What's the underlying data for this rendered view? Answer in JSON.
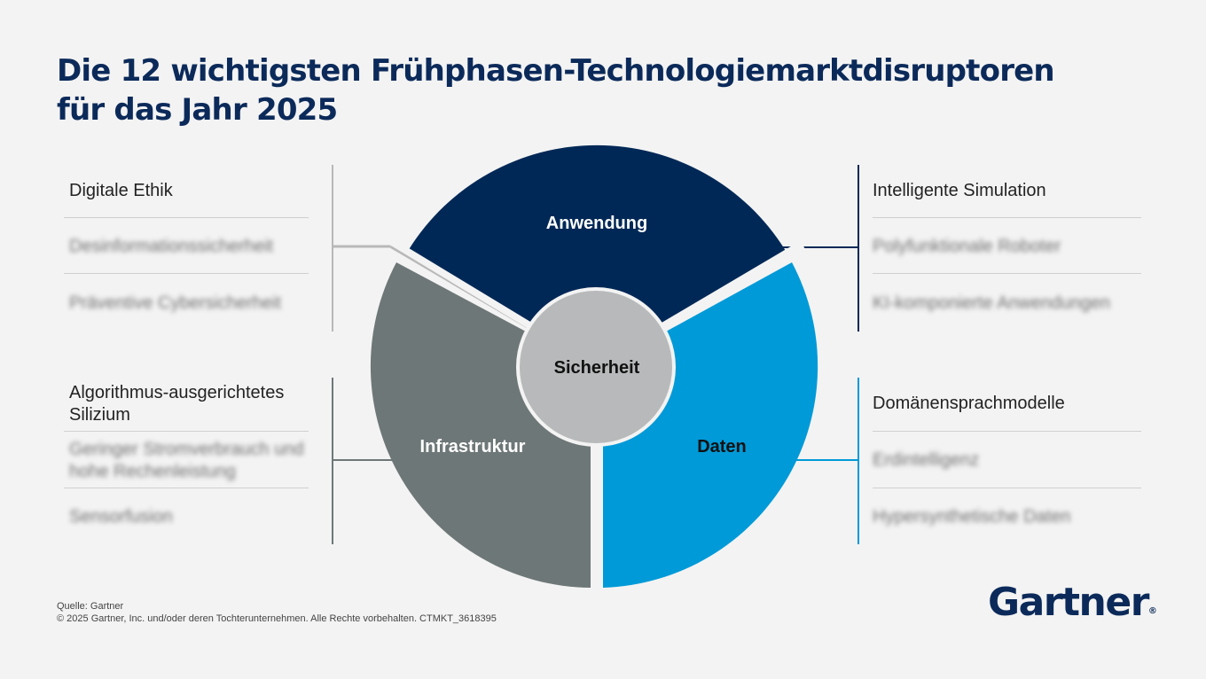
{
  "title": {
    "line1": "Die 12 wichtigsten Frühphasen-Technologiemarktdisruptoren",
    "line2": "für das Jahr 2025"
  },
  "diagram": {
    "center": "Sicherheit",
    "segments": {
      "top": "Anwendung",
      "left": "Infrastruktur",
      "right": "Daten"
    },
    "colors": {
      "anwendung": "#002856",
      "infrastruktur": "#6e7777",
      "daten": "#009ad8",
      "sicherheit": "#b7b9ba"
    }
  },
  "groups": {
    "top_left": {
      "items": [
        "Digitale Ethik",
        "Desinformationssicherheit",
        "Präventive Cybersicherheit"
      ]
    },
    "bottom_left": {
      "items": [
        "Algorithmus-ausgerichtetes Silizium",
        "Geringer Stromverbrauch und hohe Rechenleistung",
        "Sensorfusion"
      ]
    },
    "top_right": {
      "items": [
        "Intelligente Simulation",
        "Polyfunktionale Roboter",
        "KI-komponierte Anwendungen"
      ]
    },
    "bottom_right": {
      "items": [
        "Domänensprachmodelle",
        "Erdintelligenz",
        "Hypersynthetische Daten"
      ]
    }
  },
  "footer": {
    "source": "Quelle: Gartner",
    "copyright": "© 2025 Gartner, Inc. und/oder deren Tochterunternehmen. Alle Rechte vorbehalten. CTMKT_3618395"
  },
  "logo": {
    "text": "Gartner",
    "mark": "®"
  }
}
